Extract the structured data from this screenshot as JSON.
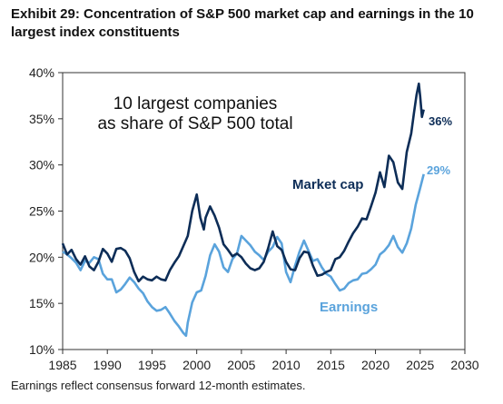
{
  "title": "Exhibit 29: Concentration of S&P 500 market cap and earnings in the 10 largest index constituents",
  "footnote": "Earnings reflect consensus forward 12-month estimates.",
  "colors": {
    "market_cap": "#0d2d57",
    "earnings": "#5aa3dc",
    "axis": "#333333"
  },
  "chart_data": {
    "type": "line",
    "annotation_title": [
      "10 largest companies",
      "as share of S&P 500 total"
    ],
    "xlim": [
      1985,
      2030
    ],
    "ylim": [
      10,
      40
    ],
    "x_ticks": [
      1985,
      1990,
      1995,
      2000,
      2005,
      2010,
      2015,
      2020,
      2025,
      2030
    ],
    "x_tick_labels": [
      "1985",
      "1990",
      "1995",
      "2000",
      "2005",
      "2010",
      "2015",
      "2020",
      "2025",
      "2030"
    ],
    "y_ticks": [
      10,
      15,
      20,
      25,
      30,
      35,
      40
    ],
    "y_tick_labels": [
      "10%",
      "15%",
      "20%",
      "25%",
      "30%",
      "35%",
      "40%"
    ],
    "grid": false,
    "series": [
      {
        "name": "Market cap",
        "end_label": "36%",
        "color": "#0d2d57",
        "points": [
          [
            1985,
            21.5
          ],
          [
            1985.5,
            20.3
          ],
          [
            1986,
            20.8
          ],
          [
            1986.5,
            19.8
          ],
          [
            1987,
            19.2
          ],
          [
            1987.5,
            20.1
          ],
          [
            1988,
            19
          ],
          [
            1988.5,
            18.6
          ],
          [
            1989,
            19.5
          ],
          [
            1989.5,
            20.9
          ],
          [
            1990,
            20.4
          ],
          [
            1990.5,
            19.5
          ],
          [
            1991,
            20.9
          ],
          [
            1991.5,
            21
          ],
          [
            1992,
            20.7
          ],
          [
            1992.5,
            19.9
          ],
          [
            1993,
            18.4
          ],
          [
            1993.5,
            17.4
          ],
          [
            1994,
            17.9
          ],
          [
            1994.5,
            17.6
          ],
          [
            1995,
            17.5
          ],
          [
            1995.5,
            17.9
          ],
          [
            1996,
            17.6
          ],
          [
            1996.5,
            17.5
          ],
          [
            1997,
            18.6
          ],
          [
            1997.5,
            19.4
          ],
          [
            1998,
            20.1
          ],
          [
            1998.5,
            21.2
          ],
          [
            1999,
            22.3
          ],
          [
            1999.5,
            25
          ],
          [
            2000,
            26.8
          ],
          [
            2000.4,
            24.3
          ],
          [
            2000.8,
            23
          ],
          [
            2001,
            24.3
          ],
          [
            2001.5,
            25.5
          ],
          [
            2002,
            24.5
          ],
          [
            2002.5,
            23.2
          ],
          [
            2003,
            21.4
          ],
          [
            2003.5,
            20.8
          ],
          [
            2004,
            20.1
          ],
          [
            2004.5,
            20.4
          ],
          [
            2005,
            20
          ],
          [
            2005.5,
            19.3
          ],
          [
            2006,
            18.8
          ],
          [
            2006.5,
            18.6
          ],
          [
            2007,
            18.8
          ],
          [
            2007.5,
            19.5
          ],
          [
            2008,
            21
          ],
          [
            2008.5,
            22.8
          ],
          [
            2009,
            21.2
          ],
          [
            2009.5,
            20.8
          ],
          [
            2010,
            19.5
          ],
          [
            2010.5,
            18.7
          ],
          [
            2011,
            18.6
          ],
          [
            2011.5,
            19.9
          ],
          [
            2012,
            20.6
          ],
          [
            2012.5,
            20.5
          ],
          [
            2013,
            19.1
          ],
          [
            2013.5,
            18
          ],
          [
            2014,
            18.1
          ],
          [
            2014.5,
            18.4
          ],
          [
            2015,
            18.6
          ],
          [
            2015.5,
            19.8
          ],
          [
            2016,
            20
          ],
          [
            2016.5,
            20.7
          ],
          [
            2017,
            21.7
          ],
          [
            2017.5,
            22.6
          ],
          [
            2018,
            23.3
          ],
          [
            2018.5,
            24.2
          ],
          [
            2019,
            24.1
          ],
          [
            2019.5,
            25.5
          ],
          [
            2020,
            27
          ],
          [
            2020.5,
            29.2
          ],
          [
            2021,
            27.6
          ],
          [
            2021.5,
            31
          ],
          [
            2022,
            30.3
          ],
          [
            2022.5,
            28.1
          ],
          [
            2023,
            27.4
          ],
          [
            2023.5,
            31.4
          ],
          [
            2024,
            33.4
          ],
          [
            2024.3,
            35.6
          ],
          [
            2024.6,
            37.6
          ],
          [
            2024.85,
            38.8
          ],
          [
            2025,
            37.4
          ],
          [
            2025.2,
            35.2
          ],
          [
            2025.4,
            36
          ]
        ]
      },
      {
        "name": "Earnings",
        "end_label": "29%",
        "color": "#5aa3dc",
        "points": [
          [
            1985,
            20.6
          ],
          [
            1985.5,
            20.3
          ],
          [
            1986,
            19.9
          ],
          [
            1986.5,
            19.4
          ],
          [
            1987,
            18.6
          ],
          [
            1987.5,
            19.6
          ],
          [
            1988,
            19.4
          ],
          [
            1988.5,
            20
          ],
          [
            1989,
            19.8
          ],
          [
            1989.5,
            18.2
          ],
          [
            1990,
            17.6
          ],
          [
            1990.5,
            17.6
          ],
          [
            1991,
            16.2
          ],
          [
            1991.5,
            16.5
          ],
          [
            1992,
            17.1
          ],
          [
            1992.5,
            17.8
          ],
          [
            1993,
            17.3
          ],
          [
            1993.5,
            16.6
          ],
          [
            1994,
            16.1
          ],
          [
            1994.5,
            15.2
          ],
          [
            1995,
            14.6
          ],
          [
            1995.5,
            14.2
          ],
          [
            1996,
            14.3
          ],
          [
            1996.5,
            14.6
          ],
          [
            1997,
            13.9
          ],
          [
            1997.5,
            13.1
          ],
          [
            1998,
            12.5
          ],
          [
            1998.5,
            11.8
          ],
          [
            1998.8,
            11.5
          ],
          [
            1999,
            12.9
          ],
          [
            1999.5,
            15.1
          ],
          [
            2000,
            16.2
          ],
          [
            2000.5,
            16.4
          ],
          [
            2001,
            18
          ],
          [
            2001.5,
            20.2
          ],
          [
            2002,
            21.4
          ],
          [
            2002.5,
            20.6
          ],
          [
            2003,
            18.9
          ],
          [
            2003.5,
            18.4
          ],
          [
            2004,
            19.8
          ],
          [
            2004.5,
            20.4
          ],
          [
            2005,
            22.3
          ],
          [
            2005.5,
            21.8
          ],
          [
            2006,
            21.3
          ],
          [
            2006.5,
            20.6
          ],
          [
            2007,
            20.2
          ],
          [
            2007.5,
            19.7
          ],
          [
            2008,
            20.6
          ],
          [
            2008.5,
            21.1
          ],
          [
            2009,
            22.2
          ],
          [
            2009.5,
            21.5
          ],
          [
            2010,
            18.4
          ],
          [
            2010.5,
            17.3
          ],
          [
            2011,
            19.1
          ],
          [
            2011.5,
            20.6
          ],
          [
            2012,
            21.8
          ],
          [
            2012.5,
            20.7
          ],
          [
            2013,
            19.6
          ],
          [
            2013.5,
            19.8
          ],
          [
            2014,
            18.9
          ],
          [
            2014.5,
            18.2
          ],
          [
            2015,
            17.9
          ],
          [
            2015.5,
            17.1
          ],
          [
            2016,
            16.4
          ],
          [
            2016.5,
            16.6
          ],
          [
            2017,
            17.2
          ],
          [
            2017.5,
            17.5
          ],
          [
            2018,
            17.6
          ],
          [
            2018.5,
            18.2
          ],
          [
            2019,
            18.3
          ],
          [
            2019.5,
            18.7
          ],
          [
            2020,
            19.2
          ],
          [
            2020.5,
            20.3
          ],
          [
            2021,
            20.7
          ],
          [
            2021.5,
            21.3
          ],
          [
            2022,
            22.3
          ],
          [
            2022.5,
            21.1
          ],
          [
            2023,
            20.5
          ],
          [
            2023.5,
            21.5
          ],
          [
            2024,
            23.1
          ],
          [
            2024.5,
            25.7
          ],
          [
            2025,
            27.5
          ],
          [
            2025.4,
            29
          ]
        ]
      }
    ],
    "annotations": [
      {
        "text": "Market cap",
        "series": "Market cap"
      },
      {
        "text": "Earnings",
        "series": "Earnings"
      }
    ]
  }
}
